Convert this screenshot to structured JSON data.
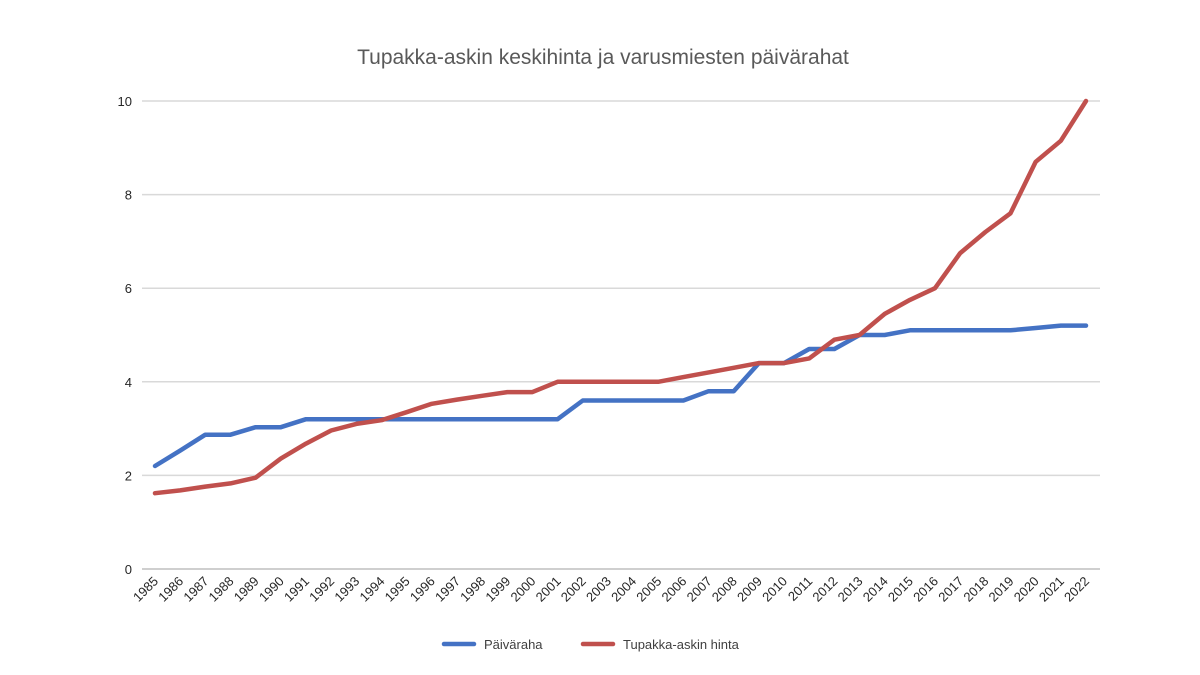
{
  "chart_data": {
    "type": "line",
    "title": "Tupakka-askin keskihinta ja varusmiesten päivärahat",
    "xlabel": "",
    "ylabel": "",
    "categories": [
      "1985",
      "1986",
      "1987",
      "1988",
      "1989",
      "1990",
      "1991",
      "1992",
      "1993",
      "1994",
      "1995",
      "1996",
      "1997",
      "1998",
      "1999",
      "2000",
      "2001",
      "2002",
      "2003",
      "2004",
      "2005",
      "2006",
      "2007",
      "2008",
      "2009",
      "2010",
      "2011",
      "2012",
      "2013",
      "2014",
      "2015",
      "2016",
      "2017",
      "2018",
      "2019",
      "2020",
      "2021",
      "2022"
    ],
    "ylim": [
      0,
      10
    ],
    "yticks": [
      "0",
      "2",
      "4",
      "6",
      "8",
      "10"
    ],
    "grid": true,
    "legend_position": "bottom",
    "series": [
      {
        "name": "Päiväraha",
        "color": "#4472c4",
        "values": [
          2.2,
          2.53,
          2.87,
          2.87,
          3.03,
          3.03,
          3.2,
          3.2,
          3.2,
          3.2,
          3.2,
          3.2,
          3.2,
          3.2,
          3.2,
          3.2,
          3.2,
          3.6,
          3.6,
          3.6,
          3.6,
          3.6,
          3.8,
          3.8,
          4.4,
          4.4,
          4.7,
          4.7,
          5.0,
          5.0,
          5.1,
          5.1,
          5.1,
          5.1,
          5.1,
          5.15,
          5.2,
          5.2
        ]
      },
      {
        "name": "Tupakka-askin hinta",
        "color": "#c0504d",
        "values": [
          1.62,
          1.68,
          1.76,
          1.83,
          1.95,
          2.36,
          2.68,
          2.96,
          3.1,
          3.18,
          3.35,
          3.53,
          3.62,
          3.7,
          3.78,
          3.78,
          4.0,
          4.0,
          4.0,
          4.0,
          4.0,
          4.1,
          4.2,
          4.3,
          4.4,
          4.4,
          4.5,
          4.9,
          5.0,
          5.45,
          5.75,
          6.0,
          6.75,
          7.2,
          7.6,
          8.7,
          9.15,
          10.0
        ]
      }
    ]
  }
}
